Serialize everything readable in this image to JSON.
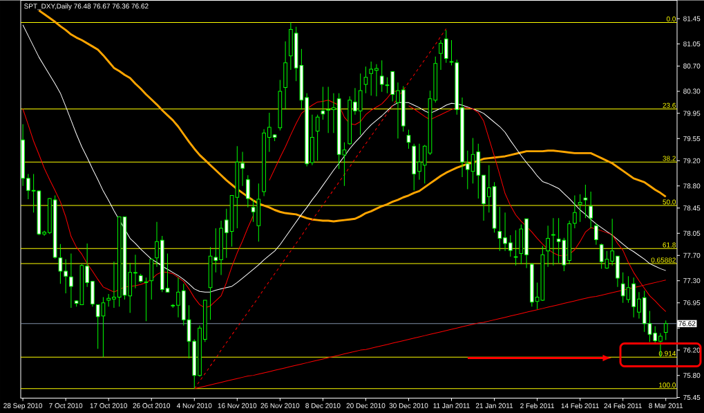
{
  "chart_data": {
    "type": "candlestick",
    "title": "SPT_DXY,Daily 76.48 76.67 76.36 76.62",
    "categories": [
      "28 Sep 2010",
      null,
      null,
      null,
      null,
      null,
      null,
      null,
      "7 Oct 2010",
      null,
      null,
      null,
      null,
      null,
      null,
      null,
      "17 Oct 2010",
      null,
      null,
      null,
      null,
      null,
      null,
      null,
      "26 Oct 2010",
      null,
      null,
      null,
      null,
      null,
      null,
      null,
      "4 Nov 2010",
      null,
      null,
      null,
      null,
      null,
      null,
      null,
      "16 Nov 2010",
      null,
      null,
      null,
      null,
      null,
      null,
      null,
      "26 Nov 2010",
      null,
      null,
      null,
      null,
      null,
      null,
      null,
      "8 Dec 2010",
      null,
      null,
      null,
      null,
      null,
      null,
      null,
      "20 Dec 2010",
      null,
      null,
      null,
      null,
      null,
      null,
      null,
      "30 Dec 2010",
      null,
      null,
      null,
      null,
      null,
      null,
      null,
      "11 Jan 2011",
      null,
      null,
      null,
      null,
      null,
      null,
      null,
      "21 Jan 2011",
      null,
      null,
      null,
      null,
      null,
      null,
      null,
      "2 Feb 2011",
      null,
      null,
      null,
      null,
      null,
      null,
      null,
      "14 Feb 2011",
      null,
      null,
      null,
      null,
      null,
      null,
      null,
      "24 Feb 2011",
      null,
      null,
      null,
      null,
      null,
      null,
      null,
      "8 Mar 2011"
    ],
    "ohlc": [
      [
        79.53,
        79.78,
        78.8,
        78.92
      ],
      [
        78.92,
        78.99,
        78.59,
        78.73
      ],
      [
        78.73,
        78.99,
        78.38,
        78.72
      ],
      [
        78.72,
        78.73,
        78.02,
        78.04
      ],
      [
        78.04,
        78.09,
        78.01,
        78.07
      ],
      [
        78.06,
        78.61,
        78.04,
        78.6
      ],
      [
        78.58,
        78.65,
        77.65,
        77.67
      ],
      [
        77.66,
        77.88,
        77.25,
        77.45
      ],
      [
        77.45,
        77.64,
        77.1,
        77.37
      ],
      [
        77.36,
        77.73,
        76.87,
        77.21
      ],
      [
        76.98,
        76.99,
        76.89,
        76.94
      ],
      [
        76.92,
        77.56,
        76.92,
        77.54
      ],
      [
        77.53,
        77.89,
        77.2,
        77.27
      ],
      [
        77.29,
        77.29,
        76.89,
        76.93
      ],
      [
        76.92,
        76.92,
        76.22,
        76.73
      ],
      [
        76.74,
        77.04,
        76.09,
        76.95
      ],
      [
        76.99,
        77.09,
        76.89,
        77.02
      ],
      [
        77.01,
        77.6,
        76.87,
        77.04
      ],
      [
        77.04,
        78.31,
        76.89,
        78.31
      ],
      [
        78.31,
        78.31,
        77.0,
        77.07
      ],
      [
        77.06,
        77.58,
        76.79,
        77.43
      ],
      [
        77.42,
        77.71,
        77.18,
        77.43
      ],
      [
        77.38,
        77.41,
        77.27,
        77.29
      ],
      [
        77.27,
        77.35,
        76.66,
        77.28
      ],
      [
        77.3,
        77.64,
        77.0,
        77.64
      ],
      [
        77.66,
        78.23,
        77.52,
        77.92
      ],
      [
        77.94,
        78.01,
        77.12,
        77.16
      ],
      [
        77.18,
        77.73,
        77.11,
        77.12
      ],
      [
        76.91,
        76.93,
        76.87,
        76.9
      ],
      [
        76.91,
        77.35,
        76.72,
        77.12
      ],
      [
        77.14,
        77.25,
        76.59,
        76.68
      ],
      [
        76.68,
        76.91,
        76.07,
        76.34
      ],
      [
        76.34,
        76.37,
        75.59,
        75.8
      ],
      [
        75.8,
        76.59,
        75.78,
        76.55
      ],
      [
        76.37,
        76.99,
        76.33,
        76.99
      ],
      [
        77.19,
        77.83,
        76.68,
        77.69
      ],
      [
        77.67,
        78.13,
        77.43,
        77.62
      ],
      [
        77.63,
        78.25,
        77.39,
        78.13
      ],
      [
        78.26,
        78.44,
        77.66,
        78.06
      ],
      [
        78.08,
        78.65,
        77.84,
        78.65
      ],
      [
        78.62,
        79.43,
        78.13,
        79.18
      ],
      [
        79.16,
        79.34,
        78.8,
        79.08
      ],
      [
        78.9,
        78.97,
        78.46,
        78.6
      ],
      [
        78.46,
        78.59,
        78.23,
        78.39
      ],
      [
        78.17,
        78.84,
        77.92,
        78.59
      ],
      [
        78.71,
        79.7,
        78.64,
        79.64
      ],
      [
        79.57,
        79.96,
        79.34,
        79.73
      ],
      [
        79.61,
        79.62,
        79.51,
        79.57
      ],
      [
        79.72,
        80.48,
        79.68,
        80.3
      ],
      [
        80.36,
        81.09,
        80.01,
        80.75
      ],
      [
        80.86,
        81.39,
        80.64,
        81.28
      ],
      [
        81.22,
        81.32,
        80.46,
        80.67
      ],
      [
        80.71,
        80.97,
        80.01,
        80.16
      ],
      [
        80.2,
        80.27,
        79.11,
        79.15
      ],
      [
        79.17,
        79.93,
        79.13,
        79.57
      ],
      [
        79.67,
        79.93,
        79.2,
        79.89
      ],
      [
        79.99,
        80.37,
        79.85,
        79.94
      ],
      [
        80.0,
        80.37,
        79.64,
        80.01
      ],
      [
        80.01,
        80.27,
        79.64,
        80.04
      ],
      [
        80.18,
        80.27,
        79.07,
        79.3
      ],
      [
        79.29,
        79.49,
        78.8,
        79.37
      ],
      [
        79.47,
        80.22,
        79.45,
        80.16
      ],
      [
        80.13,
        80.35,
        79.93,
        79.99
      ],
      [
        79.99,
        80.58,
        79.61,
        80.31
      ],
      [
        80.41,
        80.69,
        80.27,
        80.52
      ],
      [
        80.58,
        80.77,
        80.23,
        80.65
      ],
      [
        80.63,
        80.73,
        80.22,
        80.66
      ],
      [
        80.54,
        80.79,
        80.29,
        80.41
      ],
      [
        80.4,
        80.52,
        80.27,
        80.39
      ],
      [
        80.61,
        80.61,
        80.14,
        80.25
      ],
      [
        80.12,
        80.44,
        79.55,
        80.31
      ],
      [
        80.32,
        80.38,
        79.66,
        79.75
      ],
      [
        79.6,
        79.69,
        79.39,
        79.49
      ],
      [
        79.43,
        79.47,
        78.73,
        78.99
      ],
      [
        79.03,
        79.47,
        78.9,
        79.18
      ],
      [
        79.13,
        79.45,
        78.84,
        79.43
      ],
      [
        79.32,
        80.31,
        79.29,
        80.18
      ],
      [
        80.16,
        80.85,
        80.12,
        80.74
      ],
      [
        80.9,
        81.11,
        80.64,
        81.06
      ],
      [
        81.13,
        81.27,
        80.75,
        80.82
      ],
      [
        80.77,
        81.11,
        80.71,
        80.76
      ],
      [
        80.75,
        80.8,
        79.93,
        80.01
      ],
      [
        80.04,
        80.2,
        78.94,
        79.18
      ],
      [
        79.15,
        79.36,
        78.75,
        79.06
      ],
      [
        79.03,
        79.56,
        78.84,
        79.3
      ],
      [
        79.34,
        79.47,
        78.6,
        78.97
      ],
      [
        78.97,
        78.97,
        78.25,
        78.52
      ],
      [
        78.63,
        79.13,
        78.38,
        78.77
      ],
      [
        78.79,
        78.86,
        78.06,
        78.13
      ],
      [
        78.08,
        78.47,
        77.77,
        77.97
      ],
      [
        77.98,
        78.38,
        77.77,
        77.89
      ],
      [
        77.9,
        78.02,
        77.68,
        77.78
      ],
      [
        77.68,
        78.1,
        77.54,
        77.67
      ],
      [
        77.73,
        78.19,
        77.56,
        78.12
      ],
      [
        78.28,
        78.28,
        77.5,
        77.71
      ],
      [
        77.56,
        77.58,
        76.89,
        76.96
      ],
      [
        76.97,
        77.27,
        76.85,
        77.04
      ],
      [
        76.99,
        77.85,
        76.98,
        77.71
      ],
      [
        77.77,
        78.17,
        77.52,
        77.97
      ],
      [
        78.02,
        78.29,
        77.54,
        78.03
      ],
      [
        77.96,
        78.29,
        77.58,
        77.92
      ],
      [
        77.94,
        77.98,
        77.45,
        77.55
      ],
      [
        77.62,
        78.25,
        77.56,
        78.2
      ],
      [
        78.21,
        78.65,
        78.13,
        78.38
      ],
      [
        78.51,
        78.67,
        78.23,
        78.54
      ],
      [
        78.61,
        78.82,
        78.29,
        78.58
      ],
      [
        78.48,
        78.71,
        78.13,
        78.29
      ],
      [
        78.17,
        78.21,
        77.87,
        77.95
      ],
      [
        77.87,
        77.89,
        77.49,
        77.6
      ],
      [
        77.5,
        77.77,
        77.49,
        77.64
      ],
      [
        77.61,
        78.28,
        77.54,
        77.77
      ],
      [
        77.69,
        77.69,
        77.2,
        77.34
      ],
      [
        77.25,
        77.43,
        76.95,
        77.06
      ],
      [
        77.0,
        77.37,
        76.95,
        77.19
      ],
      [
        77.25,
        77.35,
        76.72,
        76.89
      ],
      [
        76.8,
        77.12,
        76.7,
        77.01
      ],
      [
        77.03,
        77.14,
        76.49,
        76.62
      ],
      [
        76.62,
        76.82,
        76.33,
        76.45
      ],
      [
        76.47,
        76.58,
        76.29,
        76.35
      ],
      [
        76.34,
        76.47,
        76.09,
        76.42
      ],
      [
        76.48,
        76.67,
        76.36,
        76.62
      ]
    ],
    "series": [
      {
        "type": "line",
        "color": "#ffa500",
        "values": [
          null,
          null,
          null,
          81.58,
          81.52,
          81.46,
          81.4,
          81.33,
          81.27,
          81.2,
          81.15,
          81.11,
          81.06,
          81.01,
          80.96,
          80.87,
          80.77,
          80.67,
          80.62,
          80.56,
          80.51,
          80.42,
          80.34,
          80.25,
          80.17,
          80.09,
          80.0,
          79.92,
          79.84,
          79.74,
          79.62,
          79.5,
          79.39,
          79.29,
          79.21,
          79.13,
          79.05,
          78.97,
          78.89,
          78.82,
          78.75,
          78.69,
          78.63,
          78.57,
          78.52,
          78.49,
          78.46,
          78.42,
          78.39,
          78.37,
          78.36,
          78.35,
          78.32,
          78.29,
          78.27,
          78.26,
          78.25,
          78.25,
          78.24,
          78.25,
          78.26,
          78.27,
          78.28,
          78.32,
          78.37,
          78.4,
          78.44,
          78.48,
          78.51,
          78.55,
          78.58,
          78.62,
          78.65,
          78.69,
          78.72,
          78.78,
          78.84,
          78.9,
          78.96,
          79.01,
          79.05,
          79.09,
          79.12,
          79.15,
          79.17,
          79.2,
          79.23,
          79.24,
          79.25,
          79.26,
          79.27,
          79.29,
          79.31,
          79.33,
          79.35,
          79.35,
          79.35,
          79.35,
          79.36,
          79.36,
          79.35,
          79.34,
          79.33,
          79.32,
          79.32,
          79.32,
          79.32,
          79.28,
          79.24,
          79.2,
          79.16,
          79.1,
          79.04,
          78.98,
          78.92,
          78.89,
          78.86,
          78.8,
          78.74,
          78.69,
          78.63
        ]
      },
      {
        "type": "line",
        "color": "#ffffff",
        "values": [
          81.35,
          81.18,
          81.01,
          80.84,
          80.7,
          80.56,
          80.42,
          80.27,
          80.06,
          79.84,
          79.62,
          79.42,
          79.25,
          79.07,
          78.9,
          78.72,
          78.57,
          78.41,
          78.26,
          78.12,
          77.97,
          77.89,
          77.8,
          77.72,
          77.64,
          77.59,
          77.53,
          77.48,
          77.43,
          77.38,
          77.32,
          77.25,
          77.17,
          77.13,
          77.12,
          77.12,
          77.15,
          77.17,
          77.19,
          77.21,
          77.27,
          77.34,
          77.41,
          77.48,
          77.55,
          77.63,
          77.7,
          77.77,
          77.87,
          77.99,
          78.11,
          78.23,
          78.35,
          78.46,
          78.58,
          78.69,
          78.81,
          78.93,
          79.05,
          79.16,
          79.27,
          79.39,
          79.49,
          79.58,
          79.68,
          79.77,
          79.84,
          79.91,
          79.99,
          80.07,
          80.12,
          80.12,
          80.12,
          80.08,
          80.04,
          79.99,
          79.95,
          79.99,
          80.03,
          80.08,
          80.11,
          80.1,
          80.08,
          80.05,
          80.02,
          79.99,
          79.95,
          79.88,
          79.81,
          79.74,
          79.65,
          79.52,
          79.4,
          79.28,
          79.17,
          79.07,
          78.96,
          78.87,
          78.84,
          78.8,
          78.76,
          78.68,
          78.6,
          78.51,
          78.42,
          78.35,
          78.27,
          78.2,
          78.14,
          78.08,
          78.02,
          77.95,
          77.88,
          77.81,
          77.76,
          77.7,
          77.64,
          77.57,
          77.53,
          77.49,
          77.46
        ]
      },
      {
        "type": "line",
        "color": "#ff0000",
        "values": [
          80.02,
          79.77,
          79.51,
          79.3,
          79.08,
          78.9,
          78.73,
          78.55,
          78.31,
          78.0,
          77.83,
          77.72,
          77.57,
          77.45,
          77.32,
          77.2,
          77.16,
          77.12,
          77.16,
          77.2,
          77.21,
          77.22,
          77.24,
          77.27,
          77.32,
          77.4,
          77.44,
          77.43,
          77.41,
          77.35,
          77.29,
          77.17,
          77.03,
          76.92,
          76.87,
          76.9,
          76.98,
          77.06,
          77.27,
          77.52,
          77.74,
          77.93,
          78.14,
          78.33,
          null,
          null,
          78.89,
          79.07,
          79.25,
          79.42,
          79.61,
          79.79,
          79.95,
          80.02,
          80.08,
          80.13,
          80.14,
          80.16,
          80.12,
          80.08,
          79.89,
          79.79,
          79.77,
          79.82,
          79.93,
          80.0,
          80.05,
          80.1,
          80.19,
          80.3,
          80.3,
          null,
          80.07,
          80.02,
          79.96,
          79.9,
          79.85,
          79.89,
          79.93,
          79.97,
          80.01,
          80.04,
          80.04,
          80.04,
          80.02,
          79.96,
          79.83,
          79.55,
          79.27,
          78.98,
          78.68,
          78.49,
          78.34,
          78.24,
          78.16,
          78.07,
          77.97,
          77.88,
          77.8,
          77.74,
          77.7,
          77.69,
          77.72,
          77.79,
          77.92,
          78.07,
          78.14,
          78.12,
          78.09,
          78.06,
          78.03,
          77.89,
          77.78,
          77.59,
          77.43,
          77.3,
          77.18,
          77.06,
          76.98,
          76.89,
          76.81
        ]
      },
      {
        "type": "line",
        "color": "#ff0000",
        "line_style": "dashed",
        "values": [
          null,
          null,
          null,
          null,
          null,
          null,
          null,
          null,
          null,
          null,
          null,
          null,
          null,
          null,
          null,
          null,
          null,
          null,
          null,
          null,
          null,
          null,
          null,
          null,
          null,
          null,
          null,
          null,
          null,
          null,
          null,
          null,
          75.59,
          75.71,
          75.83,
          75.95,
          76.07,
          76.2,
          76.32,
          76.44,
          76.56,
          76.68,
          76.8,
          76.92,
          77.04,
          77.17,
          77.29,
          77.41,
          77.53,
          77.65,
          77.77,
          77.89,
          78.01,
          78.14,
          78.26,
          78.38,
          78.5,
          78.62,
          78.74,
          78.86,
          78.98,
          79.1,
          79.23,
          79.35,
          79.47,
          79.59,
          79.71,
          79.83,
          79.95,
          80.07,
          80.2,
          80.32,
          80.44,
          80.56,
          80.68,
          80.8,
          80.92,
          81.04,
          81.17,
          81.29,
          null,
          null,
          null,
          null,
          null,
          null,
          null,
          null,
          null,
          null,
          null,
          null,
          null,
          null,
          null,
          null,
          null,
          null,
          null,
          null,
          null,
          null,
          null,
          null,
          null,
          null,
          null,
          null,
          null,
          null,
          null,
          null,
          null,
          null,
          null,
          null,
          null,
          null,
          null,
          null,
          null
        ]
      },
      {
        "type": "line",
        "color": "#ff0000",
        "line_style": "solid",
        "values": [
          null,
          null,
          null,
          null,
          null,
          null,
          null,
          null,
          null,
          null,
          null,
          null,
          null,
          null,
          null,
          null,
          null,
          null,
          null,
          null,
          null,
          null,
          null,
          null,
          null,
          null,
          null,
          null,
          null,
          null,
          null,
          null,
          75.59,
          75.61,
          75.63,
          75.65,
          75.67,
          75.69,
          75.71,
          75.73,
          75.75,
          75.77,
          75.79,
          75.8,
          75.82,
          75.84,
          75.86,
          75.88,
          75.9,
          75.92,
          75.94,
          75.96,
          75.98,
          76.0,
          76.02,
          76.04,
          76.06,
          76.08,
          76.1,
          76.12,
          76.14,
          76.16,
          76.18,
          76.2,
          76.21,
          76.23,
          76.25,
          76.27,
          76.29,
          76.31,
          76.33,
          76.35,
          76.37,
          76.39,
          76.41,
          76.43,
          76.45,
          76.47,
          76.49,
          76.51,
          76.53,
          76.55,
          76.57,
          76.59,
          76.61,
          76.63,
          76.64,
          76.66,
          76.68,
          76.7,
          76.72,
          76.74,
          76.76,
          76.78,
          76.8,
          76.82,
          76.84,
          76.86,
          76.88,
          76.9,
          76.92,
          76.94,
          76.96,
          76.98,
          77.0,
          77.02,
          77.04,
          77.05,
          77.07,
          77.09,
          77.11,
          77.13,
          77.15,
          77.17,
          77.19,
          77.21,
          77.23,
          77.25,
          77.27,
          77.29,
          77.31
        ]
      }
    ],
    "ref_lines": [
      {
        "axis": "y",
        "value": 81.39,
        "color": "#ffff00"
      },
      {
        "axis": "y",
        "value": 80.02,
        "color": "#ffff00"
      },
      {
        "axis": "y",
        "value": 79.18,
        "color": "#ffff00"
      },
      {
        "axis": "y",
        "value": 78.49,
        "color": "#ffff00"
      },
      {
        "axis": "y",
        "value": 77.81,
        "color": "#ffff00"
      },
      {
        "axis": "y",
        "value": 77.57,
        "color": "#ffff00"
      },
      {
        "axis": "y",
        "value": 76.09,
        "color": "#ffff00"
      },
      {
        "axis": "y",
        "value": 75.59,
        "color": "#ffff00"
      },
      {
        "axis": "y",
        "value": 76.62,
        "label": "76.62",
        "color": "#8090a8"
      }
    ],
    "annotations": [
      {
        "text": "0.0",
        "y": 81.39
      },
      {
        "text": "23.6",
        "y": 80.02
      },
      {
        "text": "38.2",
        "y": 79.18
      },
      {
        "text": "50.0",
        "y": 78.49
      },
      {
        "text": "61.8",
        "y": 77.81
      },
      {
        "text": "0.65882",
        "y": 77.57
      },
      {
        "text": "0.914",
        "y": 76.09
      },
      {
        "text": "100.0",
        "y": 75.59
      }
    ],
    "ylim": [
      75.44,
      81.74
    ],
    "yticks": [
      81.45,
      81.05,
      {
        "value": 80.7,
        "label": "80.70"
      },
      {
        "value": 80.3,
        "label": "80.30"
      },
      79.95,
      79.55,
      {
        "value": 79.2,
        "label": "79.20"
      },
      {
        "value": 78.8,
        "label": "78.80"
      },
      78.45,
      78.05,
      {
        "value": 77.7,
        "label": "77.70"
      },
      {
        "value": 77.3,
        "label": "77.30"
      },
      76.95,
      {
        "value": 76.55,
        "label": null
      },
      {
        "value": 76.2,
        "label": "76.20"
      },
      {
        "value": 75.8,
        "label": "75.80"
      },
      75.45
    ]
  }
}
